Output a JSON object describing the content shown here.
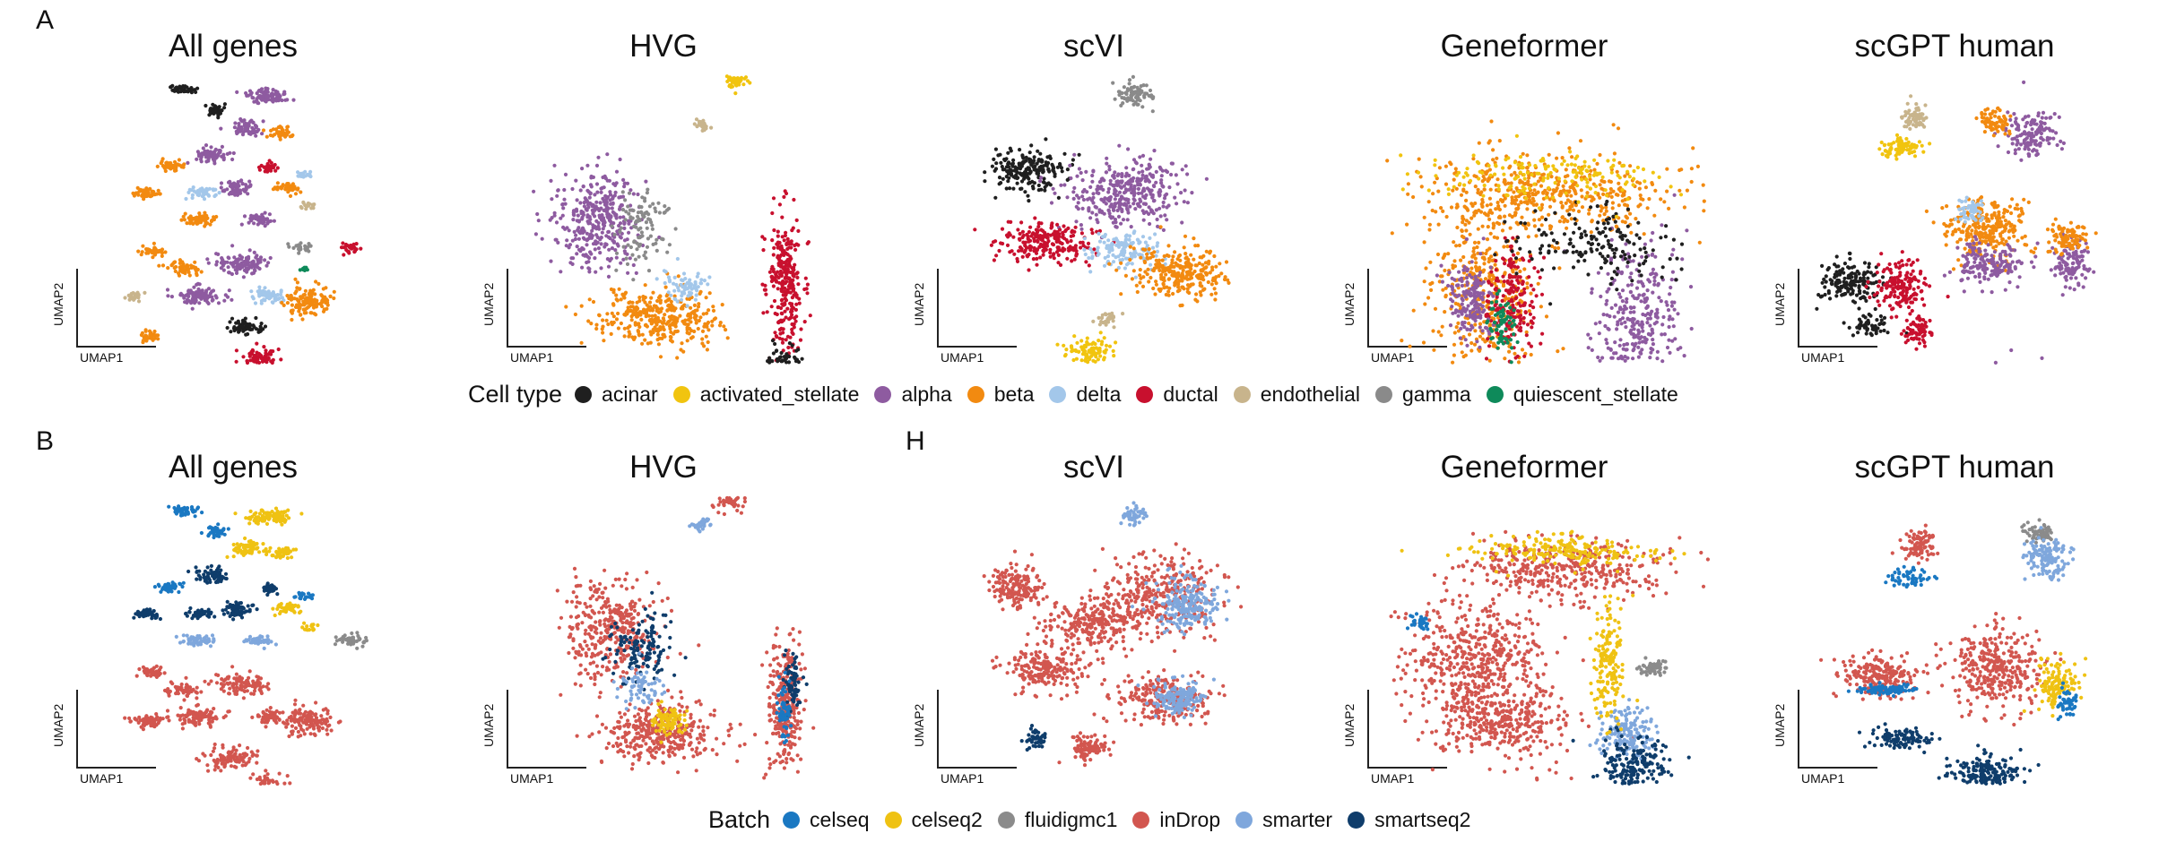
{
  "panels": [
    {
      "letter": "A",
      "legend_title": "Cell type",
      "legend": [
        {
          "name": "acinar",
          "color": "#1f1f1f"
        },
        {
          "name": "activated_stellate",
          "color": "#f1c40f"
        },
        {
          "name": "alpha",
          "color": "#8e5ba0"
        },
        {
          "name": "beta",
          "color": "#f28a10"
        },
        {
          "name": "delta",
          "color": "#a3c7ea"
        },
        {
          "name": "ductal",
          "color": "#c8102e"
        },
        {
          "name": "endothelial",
          "color": "#c8b48c"
        },
        {
          "name": "gamma",
          "color": "#8a8a8a"
        },
        {
          "name": "quiescent_stellate",
          "color": "#0e8a5a"
        }
      ]
    },
    {
      "letter": "B",
      "legend_title": "Batch",
      "legend": [
        {
          "name": "celseq",
          "color": "#1a78c2"
        },
        {
          "name": "celseq2",
          "color": "#efc213"
        },
        {
          "name": "fluidigmc1",
          "color": "#8b8b8b"
        },
        {
          "name": "inDrop",
          "color": "#d2564f"
        },
        {
          "name": "smarter",
          "color": "#7fa7dc"
        },
        {
          "name": "smartseq2",
          "color": "#0f3d6b"
        }
      ]
    }
  ],
  "inset_label": "H",
  "axis": {
    "x": "UMAP1",
    "y": "UMAP2"
  },
  "chart_data": [
    {
      "type": "scatter",
      "panel": "A",
      "title": "All genes",
      "xlabel": "UMAP1",
      "ylabel": "UMAP2",
      "color_by": "Cell type",
      "grid": false
    },
    {
      "type": "scatter",
      "panel": "A",
      "title": "HVG",
      "xlabel": "UMAP1",
      "ylabel": "UMAP2",
      "color_by": "Cell type",
      "grid": false
    },
    {
      "type": "scatter",
      "panel": "A",
      "title": "scVI",
      "xlabel": "UMAP1",
      "ylabel": "UMAP2",
      "color_by": "Cell type",
      "grid": false
    },
    {
      "type": "scatter",
      "panel": "A",
      "title": "Geneformer",
      "xlabel": "UMAP1",
      "ylabel": "UMAP2",
      "color_by": "Cell type",
      "grid": false
    },
    {
      "type": "scatter",
      "panel": "A",
      "title": "scGPT human",
      "xlabel": "UMAP1",
      "ylabel": "UMAP2",
      "color_by": "Cell type",
      "grid": false
    },
    {
      "type": "scatter",
      "panel": "B",
      "title": "All genes",
      "xlabel": "UMAP1",
      "ylabel": "UMAP2",
      "color_by": "Batch",
      "grid": false
    },
    {
      "type": "scatter",
      "panel": "B",
      "title": "HVG",
      "xlabel": "UMAP1",
      "ylabel": "UMAP2",
      "color_by": "Batch",
      "grid": false
    },
    {
      "type": "scatter",
      "panel": "B",
      "title": "scVI",
      "xlabel": "UMAP1",
      "ylabel": "UMAP2",
      "color_by": "Batch",
      "grid": false
    },
    {
      "type": "scatter",
      "panel": "B",
      "title": "Geneformer",
      "xlabel": "UMAP1",
      "ylabel": "UMAP2",
      "color_by": "Batch",
      "grid": false
    },
    {
      "type": "scatter",
      "panel": "B",
      "title": "scGPT human",
      "xlabel": "UMAP1",
      "ylabel": "UMAP2",
      "color_by": "Batch",
      "grid": false
    }
  ]
}
